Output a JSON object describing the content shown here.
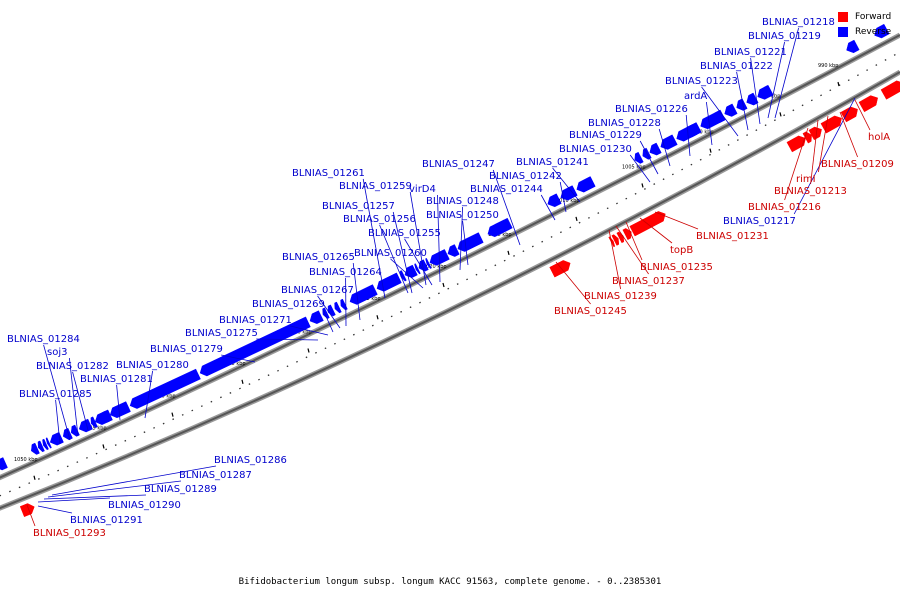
{
  "legend": {
    "forward": "Forward",
    "reverse": "Reverse"
  },
  "colors": {
    "forward": "#ff0000",
    "reverse": "#0000ff",
    "forward_label": "#cc0000",
    "reverse_label": "#0000cc"
  },
  "caption": "Bifidobacterium longum subsp. longum KACC 91563, complete genome. - 0..2385301",
  "ticks": [
    {
      "label": "990 kbp",
      "kbp": 990
    },
    {
      "label": "995 kbp",
      "kbp": 995
    },
    {
      "label": "1000 kbp",
      "kbp": 1000
    },
    {
      "label": "1005 kbp",
      "kbp": 1005
    },
    {
      "label": "1010 kbp",
      "kbp": 1010
    },
    {
      "label": "1015 kbp",
      "kbp": 1015
    },
    {
      "label": "1020 kbp",
      "kbp": 1020
    },
    {
      "label": "1025 kbp",
      "kbp": 1025
    },
    {
      "label": "1030 kbp",
      "kbp": 1030
    },
    {
      "label": "1035 kbp",
      "kbp": 1035
    },
    {
      "label": "1040 kbp",
      "kbp": 1040
    },
    {
      "label": "1045 kbp",
      "kbp": 1045
    },
    {
      "label": "1050 kbp",
      "kbp": 1050
    }
  ],
  "genes": [
    {
      "name": "BLNIAS_01218",
      "strand": "reverse"
    },
    {
      "name": "BLNIAS_01219",
      "strand": "reverse"
    },
    {
      "name": "BLNIAS_01221",
      "strand": "reverse"
    },
    {
      "name": "BLNIAS_01222",
      "strand": "reverse"
    },
    {
      "name": "BLNIAS_01223",
      "strand": "reverse"
    },
    {
      "name": "ardA",
      "strand": "reverse"
    },
    {
      "name": "BLNIAS_01226",
      "strand": "reverse"
    },
    {
      "name": "BLNIAS_01228",
      "strand": "reverse"
    },
    {
      "name": "BLNIAS_01229",
      "strand": "reverse"
    },
    {
      "name": "BLNIAS_01230",
      "strand": "reverse"
    },
    {
      "name": "BLNIAS_01247",
      "strand": "reverse"
    },
    {
      "name": "BLNIAS_01241",
      "strand": "reverse"
    },
    {
      "name": "BLNIAS_01242",
      "strand": "reverse"
    },
    {
      "name": "BLNIAS_01244",
      "strand": "reverse"
    },
    {
      "name": "BLNIAS_01261",
      "strand": "reverse"
    },
    {
      "name": "BLNIAS_01259",
      "strand": "reverse"
    },
    {
      "name": "virD4",
      "strand": "reverse"
    },
    {
      "name": "BLNIAS_01257",
      "strand": "reverse"
    },
    {
      "name": "BLNIAS_01248",
      "strand": "reverse"
    },
    {
      "name": "BLNIAS_01256",
      "strand": "reverse"
    },
    {
      "name": "BLNIAS_01250",
      "strand": "reverse"
    },
    {
      "name": "BLNIAS_01255",
      "strand": "reverse"
    },
    {
      "name": "BLNIAS_01265",
      "strand": "reverse"
    },
    {
      "name": "BLNIAS_01260",
      "strand": "reverse"
    },
    {
      "name": "BLNIAS_01264",
      "strand": "reverse"
    },
    {
      "name": "BLNIAS_01267",
      "strand": "reverse"
    },
    {
      "name": "BLNIAS_01269",
      "strand": "reverse"
    },
    {
      "name": "BLNIAS_01271",
      "strand": "reverse"
    },
    {
      "name": "BLNIAS_01275",
      "strand": "reverse"
    },
    {
      "name": "BLNIAS_01284",
      "strand": "reverse"
    },
    {
      "name": "soj3",
      "strand": "reverse"
    },
    {
      "name": "BLNIAS_01279",
      "strand": "reverse"
    },
    {
      "name": "BLNIAS_01282",
      "strand": "reverse"
    },
    {
      "name": "BLNIAS_01280",
      "strand": "reverse"
    },
    {
      "name": "BLNIAS_01281",
      "strand": "reverse"
    },
    {
      "name": "BLNIAS_01285",
      "strand": "reverse"
    },
    {
      "name": "BLNIAS_01286",
      "strand": "reverse"
    },
    {
      "name": "BLNIAS_01287",
      "strand": "reverse"
    },
    {
      "name": "BLNIAS_01289",
      "strand": "reverse"
    },
    {
      "name": "BLNIAS_01290",
      "strand": "reverse"
    },
    {
      "name": "BLNIAS_01291",
      "strand": "reverse"
    },
    {
      "name": "BLNIAS_01217",
      "strand": "reverse"
    },
    {
      "name": "holA",
      "strand": "forward"
    },
    {
      "name": "BLNIAS_01209",
      "strand": "forward"
    },
    {
      "name": "rimI",
      "strand": "forward"
    },
    {
      "name": "BLNIAS_01213",
      "strand": "forward"
    },
    {
      "name": "BLNIAS_01216",
      "strand": "forward"
    },
    {
      "name": "BLNIAS_01231",
      "strand": "forward"
    },
    {
      "name": "topB",
      "strand": "forward"
    },
    {
      "name": "BLNIAS_01235",
      "strand": "forward"
    },
    {
      "name": "BLNIAS_01237",
      "strand": "forward"
    },
    {
      "name": "BLNIAS_01239",
      "strand": "forward"
    },
    {
      "name": "BLNIAS_01245",
      "strand": "forward"
    },
    {
      "name": "BLNIAS_01293",
      "strand": "forward"
    }
  ]
}
